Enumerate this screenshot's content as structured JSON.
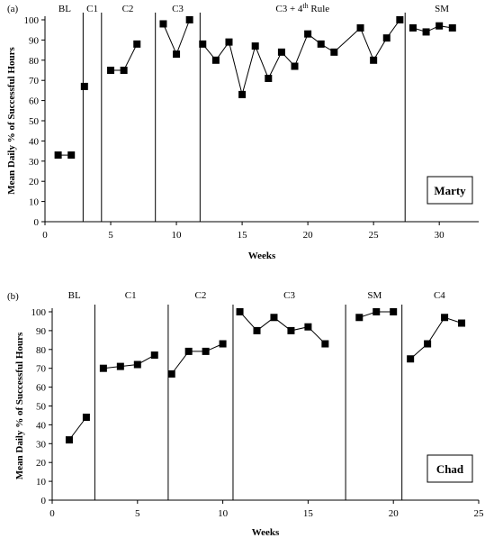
{
  "chart_data": [
    {
      "type": "line",
      "panel_label": "(a)",
      "participant": "Marty",
      "xlabel": "Weeks",
      "ylabel": "Mean Daily % of Successful Hours",
      "xlim": [
        0,
        33
      ],
      "ylim": [
        0,
        100
      ],
      "xticks": [
        0,
        5,
        10,
        15,
        20,
        25,
        30
      ],
      "yticks": [
        0,
        10,
        20,
        30,
        40,
        50,
        60,
        70,
        80,
        90,
        100
      ],
      "phase_boundaries": [
        2.9,
        4.3,
        8.4,
        11.8,
        27.4
      ],
      "phases": [
        {
          "label": "BL",
          "center": 1.5
        },
        {
          "label": "C1",
          "center": 3.6
        },
        {
          "label": "C2",
          "center": 6.3
        },
        {
          "label": "C3",
          "center": 10.1
        },
        {
          "label": "C3 + 4",
          "sup": "th",
          "suffix": " Rule",
          "center": 19.6
        },
        {
          "label": "SM",
          "center": 30.2
        }
      ],
      "segments": [
        [
          [
            1,
            33
          ],
          [
            2,
            33
          ]
        ],
        [
          [
            3,
            67
          ]
        ],
        [
          [
            5,
            75
          ],
          [
            6,
            75
          ],
          [
            7,
            88
          ]
        ],
        [
          [
            9,
            98
          ],
          [
            10,
            83
          ],
          [
            11,
            100
          ]
        ],
        [
          [
            12,
            88
          ],
          [
            13,
            80
          ],
          [
            14,
            89
          ],
          [
            15,
            63
          ],
          [
            16,
            87
          ],
          [
            17,
            71
          ],
          [
            18,
            84
          ],
          [
            19,
            77
          ],
          [
            20,
            93
          ],
          [
            21,
            88
          ],
          [
            22,
            84
          ],
          [
            24,
            96
          ],
          [
            25,
            80
          ],
          [
            26,
            91
          ],
          [
            27,
            100
          ]
        ],
        [
          [
            28,
            96
          ],
          [
            29,
            94
          ],
          [
            30,
            97
          ],
          [
            31,
            96
          ]
        ]
      ]
    },
    {
      "type": "line",
      "panel_label": "(b)",
      "participant": "Chad",
      "xlabel": "Weeks",
      "ylabel": "Mean Daily % of Successful Hours",
      "xlim": [
        0,
        25
      ],
      "ylim": [
        0,
        100
      ],
      "xticks": [
        0,
        5,
        10,
        15,
        20,
        25
      ],
      "yticks": [
        0,
        10,
        20,
        30,
        40,
        50,
        60,
        70,
        80,
        90,
        100
      ],
      "phase_boundaries": [
        2.5,
        6.8,
        10.6,
        17.2,
        20.5
      ],
      "phases": [
        {
          "label": "BL",
          "center": 1.3
        },
        {
          "label": "C1",
          "center": 4.6
        },
        {
          "label": "C2",
          "center": 8.7
        },
        {
          "label": "C3",
          "center": 13.9
        },
        {
          "label": "SM",
          "center": 18.9
        },
        {
          "label": "C4",
          "center": 22.7
        }
      ],
      "segments": [
        [
          [
            1,
            32
          ],
          [
            2,
            44
          ]
        ],
        [
          [
            3,
            70
          ],
          [
            4,
            71
          ],
          [
            5,
            72
          ],
          [
            6,
            77
          ]
        ],
        [
          [
            7,
            67
          ],
          [
            8,
            79
          ],
          [
            9,
            79
          ],
          [
            10,
            83
          ]
        ],
        [
          [
            11,
            100
          ],
          [
            12,
            90
          ],
          [
            13,
            97
          ],
          [
            14,
            90
          ],
          [
            15,
            92
          ],
          [
            16,
            83
          ]
        ],
        [
          [
            18,
            97
          ],
          [
            19,
            100
          ],
          [
            20,
            100
          ]
        ],
        [
          [
            21,
            75
          ],
          [
            22,
            83
          ],
          [
            23,
            97
          ],
          [
            24,
            94
          ]
        ]
      ]
    }
  ]
}
